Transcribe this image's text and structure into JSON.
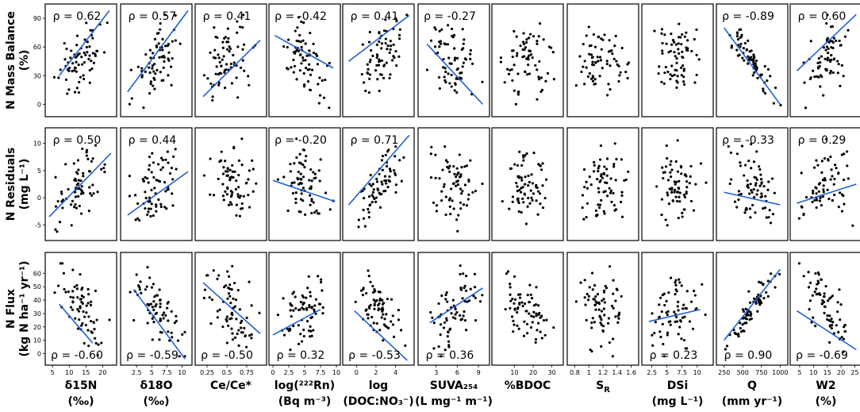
{
  "chart_data": {
    "type": "scatter",
    "title": "",
    "fit_color": "#1f5fd6",
    "point_color": "#000000",
    "columns": [
      {
        "id": "d15n",
        "label1": "δ15N",
        "label2": "(‰)",
        "xlim": [
          4,
          23
        ],
        "ticks": [
          5,
          10,
          15,
          20
        ]
      },
      {
        "id": "d18o",
        "label1": "δ18O",
        "label2": "(‰)",
        "xlim": [
          0.5,
          11
        ],
        "ticks": [
          2.5,
          5.0,
          7.5,
          10.0
        ]
      },
      {
        "id": "ce",
        "label1": "Ce/Ce*",
        "label2": "",
        "xlim": [
          0.15,
          0.95
        ],
        "ticks": [
          0.25,
          0.5,
          0.75
        ]
      },
      {
        "id": "rn",
        "label1": "log(²²²Rn)",
        "label2": "(Bq m⁻³)",
        "xlim": [
          0,
          10
        ],
        "ticks": [
          0.0,
          2.5,
          5.0,
          7.5,
          10.0
        ]
      },
      {
        "id": "docno3",
        "label1": "log",
        "label2": "(DOC:NO₃⁻)",
        "xlim": [
          -1,
          5.5
        ],
        "ticks": [
          0,
          2,
          4
        ]
      },
      {
        "id": "suva",
        "label1": "SUVA₂₅₄",
        "label2": "(L mg⁻¹ m⁻¹)",
        "xlim": [
          1,
          10
        ],
        "ticks": [
          3,
          6,
          9
        ]
      },
      {
        "id": "bdoc",
        "label1": "%BDOC",
        "label2": "",
        "xlim": [
          0,
          34
        ],
        "ticks": [
          10,
          20,
          30
        ]
      },
      {
        "id": "sr",
        "label1": "S_R",
        "label2": "",
        "xlim": [
          0.75,
          1.65
        ],
        "ticks": [
          0.8,
          1.0,
          1.2,
          1.4,
          1.6
        ]
      },
      {
        "id": "dsi",
        "label1": "DSi",
        "label2": "(mg L⁻¹)",
        "xlim": [
          1.5,
          12
        ],
        "ticks": [
          2.5,
          5.0,
          7.5,
          10.0
        ]
      },
      {
        "id": "q",
        "label1": "Q",
        "label2": "(mm yr⁻¹)",
        "xlim": [
          200,
          1050
        ],
        "ticks": [
          250,
          500,
          750,
          1000
        ]
      },
      {
        "id": "w2",
        "label1": "W2",
        "label2": "(%)",
        "xlim": [
          3,
          26
        ],
        "ticks": [
          5,
          10,
          15,
          20,
          25
        ]
      }
    ],
    "rows": [
      {
        "id": "balance",
        "label1": "N Mass Balance",
        "label2": "(%)",
        "ylim": [
          -8,
          100
        ],
        "ticks": [
          0,
          30,
          60,
          90
        ],
        "rho": [
          "ρ = 0.62",
          "ρ = 0.57",
          "ρ = 0.41",
          "ρ = -0.42",
          "ρ = 0.41",
          "ρ = -0.27",
          "",
          "",
          "",
          "ρ = -0.89",
          "ρ = 0.60"
        ],
        "rho_pos": "top",
        "fit": [
          [
            7,
            30,
            22,
            98
          ],
          [
            1,
            13,
            11,
            98
          ],
          [
            0.2,
            8,
            0.92,
            67
          ],
          [
            0.3,
            72,
            9.5,
            38
          ],
          [
            -0.8,
            45,
            5.4,
            93
          ],
          [
            1.7,
            63,
            9.6,
            0
          ],
          null,
          null,
          null,
          [
            250,
            80,
            1000,
            0
          ],
          [
            4,
            35,
            25.5,
            94
          ]
        ],
        "corr": [
          0.62,
          0.57,
          0.41,
          -0.42,
          0.41,
          -0.27,
          0,
          0,
          0,
          -0.89,
          0.6
        ]
      },
      {
        "id": "residuals",
        "label1": "N Residuals",
        "label2": "(mg L⁻¹)",
        "ylim": [
          -7,
          12
        ],
        "ticks": [
          -5,
          0,
          5,
          10
        ],
        "rho": [
          "ρ = 0.50",
          "ρ = 0.44",
          "",
          "ρ = -0.20",
          "ρ = 0.71",
          "",
          "",
          "",
          "",
          "ρ = -0.33",
          "ρ = 0.29"
        ],
        "rho_pos": "top",
        "fit": [
          [
            4,
            -3.5,
            22.5,
            8.2
          ],
          [
            1,
            -3.2,
            11,
            4.8
          ],
          null,
          [
            0,
            3.2,
            9.8,
            -0.7
          ],
          [
            -0.8,
            -1.3,
            5.4,
            11.5
          ],
          null,
          null,
          null,
          null,
          [
            250,
            1,
            1000,
            -1.3
          ],
          [
            4,
            -1,
            25.5,
            2.5
          ]
        ],
        "corr": [
          0.5,
          0.44,
          0,
          -0.2,
          0.71,
          0,
          0,
          0,
          0,
          -0.33,
          0.29
        ]
      },
      {
        "id": "flux",
        "label1": "N Flux",
        "label2": "(kg N ha⁻¹ yr⁻¹)",
        "ylim": [
          -5,
          72
        ],
        "ticks": [
          0,
          10,
          20,
          30,
          40,
          50,
          60
        ],
        "rho": [
          "ρ = -0.60",
          "ρ = -0.59",
          "ρ = -0.50",
          "ρ = 0.32",
          "ρ = -0.53",
          "ρ = 0.36",
          "",
          "",
          "ρ = 0.23",
          "ρ = 0.90",
          "ρ = -0.69"
        ],
        "rho_pos": "bottom",
        "fit": [
          [
            7,
            37,
            17,
            8
          ],
          [
            2,
            48,
            10.5,
            -4
          ],
          [
            0.2,
            53,
            0.92,
            15
          ],
          [
            0,
            14,
            7.5,
            33
          ],
          [
            -0.2,
            32,
            5.2,
            -5
          ],
          [
            2.1,
            23,
            9.6,
            49
          ],
          null,
          null,
          [
            2,
            24,
            10.5,
            33
          ],
          [
            250,
            10,
            1000,
            63
          ],
          [
            4,
            32,
            25.5,
            3
          ]
        ],
        "corr": [
          -0.6,
          -0.59,
          -0.5,
          0.32,
          -0.53,
          0.36,
          0,
          0,
          0.23,
          0.9,
          -0.69
        ]
      }
    ]
  }
}
